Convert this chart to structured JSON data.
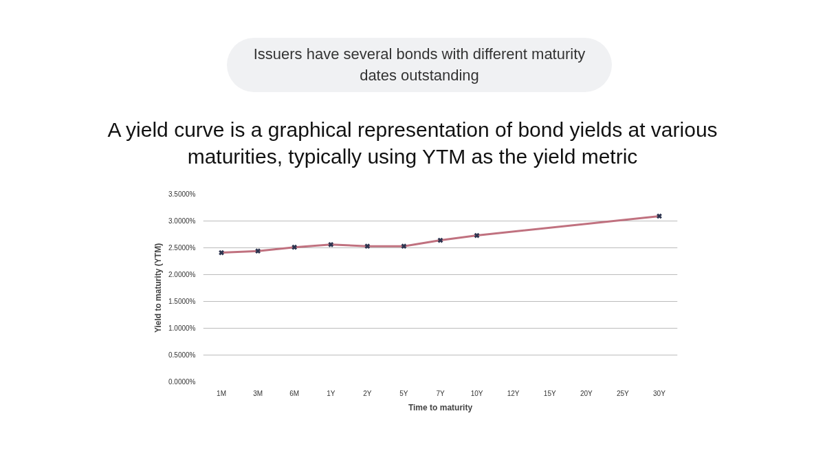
{
  "chart_data": {
    "type": "line",
    "subtitle": "Issuers have several bonds with different maturity dates outstanding",
    "title": "A yield curve is a graphical representation of bond yields at various maturities, typically using YTM as the yield metric",
    "xlabel": "Time to maturity",
    "ylabel": "Yield to maturity (YTM)",
    "categories": [
      "1M",
      "3M",
      "6M",
      "1Y",
      "2Y",
      "5Y",
      "7Y",
      "10Y",
      "12Y",
      "15Y",
      "20Y",
      "25Y",
      "30Y"
    ],
    "series": [
      {
        "color": "#c0717f",
        "values": [
          2.41,
          2.44,
          2.51,
          2.56,
          2.53,
          2.53,
          2.64,
          2.73,
          null,
          null,
          null,
          null,
          3.09
        ]
      }
    ],
    "ylim": [
      0,
      3.5
    ],
    "yticks": [
      {
        "value": 0,
        "label": "0.0000%"
      },
      {
        "value": 0.5,
        "label": "0.5000%"
      },
      {
        "value": 1,
        "label": "1.0000%"
      },
      {
        "value": 1.5,
        "label": "1.5000%"
      },
      {
        "value": 2,
        "label": "2.0000%"
      },
      {
        "value": 2.5,
        "label": "2.5000%"
      },
      {
        "value": 3,
        "label": "3.0000%"
      },
      {
        "value": 3.5,
        "label": "3.5000%"
      }
    ],
    "grid": "y",
    "marker": "cross",
    "line_style": "solid"
  }
}
